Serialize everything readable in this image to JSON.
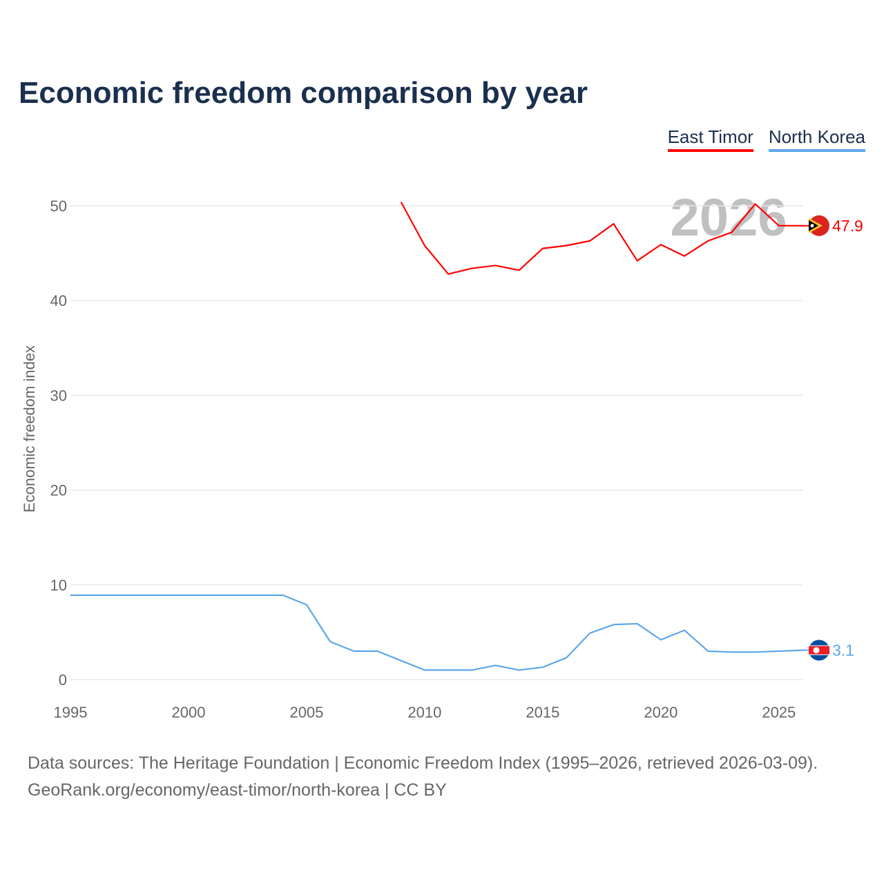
{
  "title": "Economic freedom comparison by year",
  "footer": {
    "line1": "Data sources: The Heritage Foundation | Economic Freedom Index (1995–2026, retrieved 2026-03-09).",
    "line2": "GeoRank.org/economy/east-timor/north-korea | CC BY"
  },
  "chart_data": {
    "type": "line",
    "title": "Economic freedom comparison by year",
    "xlabel": "",
    "ylabel": "Economic freedom index",
    "xlim": [
      1995,
      2026
    ],
    "ylim": [
      0,
      55
    ],
    "xticks": [
      "1995",
      "2000",
      "2005",
      "2010",
      "2015",
      "2020",
      "2025"
    ],
    "yticks": [
      "0",
      "10",
      "20",
      "30",
      "40",
      "50"
    ],
    "watermark_year": "2026",
    "legend_position": "top-right",
    "grid": true,
    "series": [
      {
        "name": "East Timor",
        "color": "#ff0000",
        "end_label": "47.9",
        "flag": "east-timor-flag",
        "x": [
          2009,
          2010,
          2011,
          2012,
          2013,
          2014,
          2015,
          2016,
          2017,
          2018,
          2019,
          2020,
          2021,
          2022,
          2023,
          2024,
          2025,
          2026
        ],
        "values": [
          50.4,
          45.8,
          42.8,
          43.4,
          43.7,
          43.2,
          45.5,
          45.8,
          46.3,
          48.1,
          44.2,
          45.9,
          44.7,
          46.3,
          47.2,
          50.2,
          47.9,
          47.9
        ]
      },
      {
        "name": "North Korea",
        "color": "#5ea6ea",
        "end_label": "3.1",
        "flag": "north-korea-flag",
        "x": [
          1995,
          1996,
          1997,
          1998,
          1999,
          2000,
          2001,
          2002,
          2003,
          2004,
          2005,
          2006,
          2007,
          2008,
          2009,
          2010,
          2011,
          2012,
          2013,
          2014,
          2015,
          2016,
          2017,
          2018,
          2019,
          2020,
          2021,
          2022,
          2023,
          2024,
          2025,
          2026
        ],
        "values": [
          8.9,
          8.9,
          8.9,
          8.9,
          8.9,
          8.9,
          8.9,
          8.9,
          8.9,
          8.9,
          7.9,
          4.0,
          3.0,
          3.0,
          2.0,
          1.0,
          1.0,
          1.0,
          1.5,
          1.0,
          1.3,
          2.3,
          4.9,
          5.8,
          5.9,
          4.2,
          5.2,
          3.0,
          2.9,
          2.9,
          3.0,
          3.1
        ]
      }
    ]
  }
}
